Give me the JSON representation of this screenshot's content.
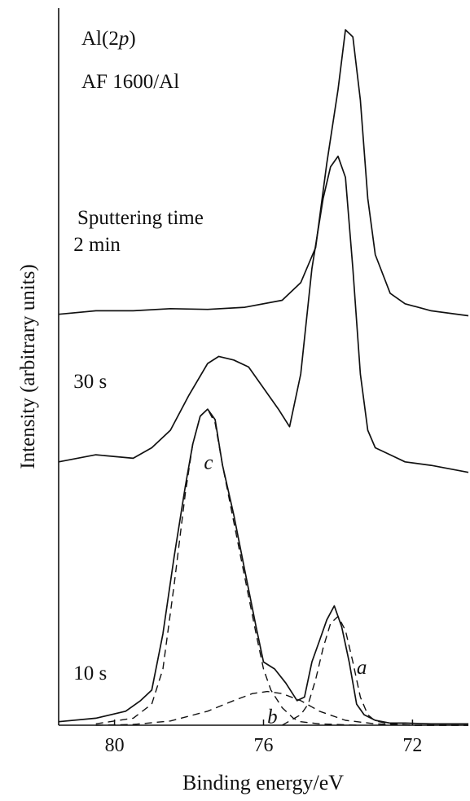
{
  "chart_data": {
    "type": "line",
    "title_lines": [
      {
        "prefix": "Al(2",
        "ital": "p",
        "suffix": ")"
      },
      {
        "prefix": "AF 1600/Al",
        "ital": "",
        "suffix": ""
      }
    ],
    "legend_title": "Sputtering time",
    "xlabel": "Binding energy/eV",
    "ylabel": "Intensity (arbitrary units)",
    "x_reversed": true,
    "xlim": [
      81.5,
      70.5
    ],
    "ylim": [
      0,
      100
    ],
    "x_ticks": [
      80,
      76,
      72
    ],
    "x_tick_labels": [
      "80",
      "76",
      "72"
    ],
    "colors": {
      "line": "#111111",
      "axis": "#111111"
    },
    "series": [
      {
        "name": "2 min",
        "style": "solid",
        "x": [
          81.5,
          80.5,
          79.5,
          78.5,
          77.5,
          76.5,
          75.5,
          75.0,
          74.6,
          74.3,
          74.0,
          73.8,
          73.6,
          73.4,
          73.2,
          73.0,
          72.6,
          72.2,
          71.5,
          70.5
        ],
        "y": [
          58.5,
          59.0,
          59.0,
          59.3,
          59.2,
          59.5,
          60.5,
          63.0,
          68.0,
          80.0,
          90.5,
          99.0,
          98.0,
          89.0,
          75.0,
          67.0,
          61.5,
          60.0,
          59.0,
          58.3
        ]
      },
      {
        "name": "30 s",
        "style": "solid",
        "x": [
          81.5,
          80.5,
          79.5,
          79.0,
          78.5,
          78.0,
          77.5,
          77.2,
          76.8,
          76.4,
          76.0,
          75.6,
          75.3,
          75.0,
          74.7,
          74.4,
          74.2,
          74.0,
          73.8,
          73.6,
          73.4,
          73.2,
          73.0,
          72.6,
          72.2,
          71.5,
          70.5
        ],
        "y": [
          37.5,
          38.5,
          38.0,
          39.5,
          42.0,
          47.0,
          51.5,
          52.5,
          52.0,
          51.0,
          48.0,
          45.0,
          42.5,
          50.0,
          65.0,
          75.0,
          79.5,
          81.0,
          78.0,
          65.0,
          50.0,
          42.0,
          39.5,
          38.5,
          37.5,
          37.0,
          36.0
        ]
      },
      {
        "name": "10 s",
        "style": "solid",
        "x": [
          81.5,
          80.5,
          79.7,
          79.3,
          79.0,
          78.7,
          78.4,
          78.1,
          77.9,
          77.7,
          77.5,
          77.3,
          77.1,
          76.8,
          76.5,
          76.2,
          76.0,
          75.7,
          75.4,
          75.1,
          74.9,
          74.7,
          74.5,
          74.3,
          74.1,
          73.9,
          73.7,
          73.5,
          73.3,
          73.0,
          72.6,
          72.2,
          71.5,
          70.5
        ],
        "y": [
          0.5,
          1.0,
          2.0,
          3.5,
          5.0,
          13.0,
          24.0,
          34.0,
          40.0,
          44.0,
          45.0,
          43.5,
          37.0,
          30.0,
          22.0,
          14.0,
          9.0,
          8.0,
          6.0,
          3.5,
          4.0,
          9.0,
          12.0,
          15.0,
          17.0,
          14.0,
          9.0,
          3.0,
          1.5,
          0.7,
          0.3,
          0.3,
          0.2,
          0.2
        ]
      },
      {
        "name": "c",
        "style": "dashed",
        "x": [
          80.5,
          79.5,
          79.0,
          78.7,
          78.4,
          78.1,
          77.9,
          77.7,
          77.5,
          77.3,
          77.1,
          76.8,
          76.5,
          76.2,
          76.0,
          75.8,
          75.5,
          75.2,
          75.0,
          74.5,
          73.5
        ],
        "y": [
          0.2,
          1.0,
          3.0,
          8.0,
          20.0,
          33.0,
          40.0,
          44.0,
          45.0,
          43.0,
          37.0,
          29.0,
          21.0,
          13.0,
          8.0,
          5.0,
          2.5,
          1.0,
          0.5,
          0.2,
          0.0
        ]
      },
      {
        "name": "b",
        "style": "dashed",
        "x": [
          80.5,
          79.5,
          78.5,
          77.5,
          76.8,
          76.3,
          75.9,
          75.5,
          75.0,
          74.5,
          73.8,
          73.0,
          72.0,
          70.5
        ],
        "y": [
          0.0,
          0.1,
          0.6,
          2.0,
          3.5,
          4.5,
          4.8,
          4.5,
          3.5,
          2.0,
          0.7,
          0.2,
          0.0,
          0.0
        ]
      },
      {
        "name": "a",
        "style": "dashed",
        "x": [
          75.5,
          75.0,
          74.8,
          74.6,
          74.4,
          74.2,
          74.0,
          73.8,
          73.6,
          73.4,
          73.2,
          73.0,
          72.6,
          72.0,
          70.5
        ],
        "y": [
          0.0,
          1.5,
          3.0,
          6.5,
          11.0,
          14.5,
          15.5,
          13.5,
          9.0,
          4.0,
          1.5,
          0.6,
          0.2,
          0.0,
          0.0
        ]
      }
    ],
    "labels": [
      {
        "text": "2 min",
        "style": "normal",
        "x": 81.1,
        "y": 67.5
      },
      {
        "text": "30 s",
        "style": "normal",
        "x": 81.1,
        "y": 48.0
      },
      {
        "text": "10 s",
        "style": "normal",
        "x": 81.1,
        "y": 6.5
      },
      {
        "text": "c",
        "style": "italic",
        "x": 77.6,
        "y": 36.5
      },
      {
        "text": "b",
        "style": "italic",
        "x": 75.9,
        "y": 0.3
      },
      {
        "text": "a",
        "style": "italic",
        "x": 73.5,
        "y": 7.3
      }
    ]
  }
}
